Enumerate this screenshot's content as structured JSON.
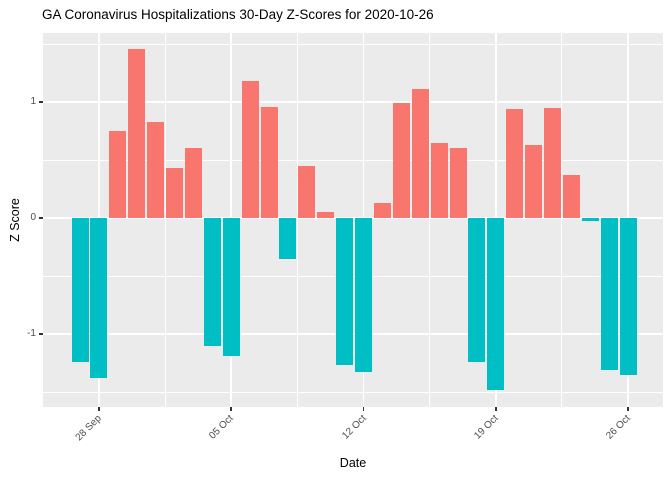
{
  "title": "GA Coronavirus Hospitalizations 30-Day Z-Scores for 2020-10-26",
  "chart_data": {
    "type": "bar",
    "title": "GA Coronavirus Hospitalizations 30-Day Z-Scores for 2020-10-26",
    "xlabel": "Date",
    "ylabel": "Z Score",
    "x": [
      "2020-09-27",
      "2020-09-28",
      "2020-09-29",
      "2020-09-30",
      "2020-10-01",
      "2020-10-02",
      "2020-10-03",
      "2020-10-04",
      "2020-10-05",
      "2020-10-06",
      "2020-10-07",
      "2020-10-08",
      "2020-10-09",
      "2020-10-10",
      "2020-10-11",
      "2020-10-12",
      "2020-10-13",
      "2020-10-14",
      "2020-10-15",
      "2020-10-16",
      "2020-10-17",
      "2020-10-18",
      "2020-10-19",
      "2020-10-20",
      "2020-10-21",
      "2020-10-22",
      "2020-10-23",
      "2020-10-24",
      "2020-10-25",
      "2020-10-26"
    ],
    "values": [
      -1.24,
      -1.38,
      0.75,
      1.46,
      0.83,
      0.43,
      0.6,
      -1.1,
      -1.19,
      1.18,
      0.96,
      -0.35,
      0.45,
      0.05,
      -1.27,
      -1.33,
      0.13,
      0.99,
      1.11,
      0.65,
      0.6,
      -1.24,
      -1.48,
      0.94,
      0.63,
      0.95,
      0.37,
      -0.03,
      -1.31,
      -1.35
    ],
    "ylim": [
      -1.62,
      1.6
    ],
    "yticks": [
      -1,
      0,
      1
    ],
    "ytick_labels": [
      "-1",
      "0",
      "1"
    ],
    "yticks_minor": [
      -1.5,
      -0.5,
      0.5,
      1.5
    ],
    "xticks": [
      {
        "index": 1,
        "label": "28 Sep"
      },
      {
        "index": 8,
        "label": "05 Oct"
      },
      {
        "index": 15,
        "label": "12 Oct"
      },
      {
        "index": 22,
        "label": "19 Oct"
      },
      {
        "index": 29,
        "label": "26 Oct"
      }
    ],
    "grid": true,
    "legend": false,
    "colors": {
      "positive_bar": "#F8766D",
      "negative_bar": "#00BFC4"
    }
  },
  "style": {
    "panel_bg": "#EBEBEB",
    "grid_color": "#FFFFFF",
    "axis_text_color": "#4D4D4D",
    "axis_title_color": "#000000",
    "tick_color": "#333333",
    "background": "#FFFFFF"
  }
}
